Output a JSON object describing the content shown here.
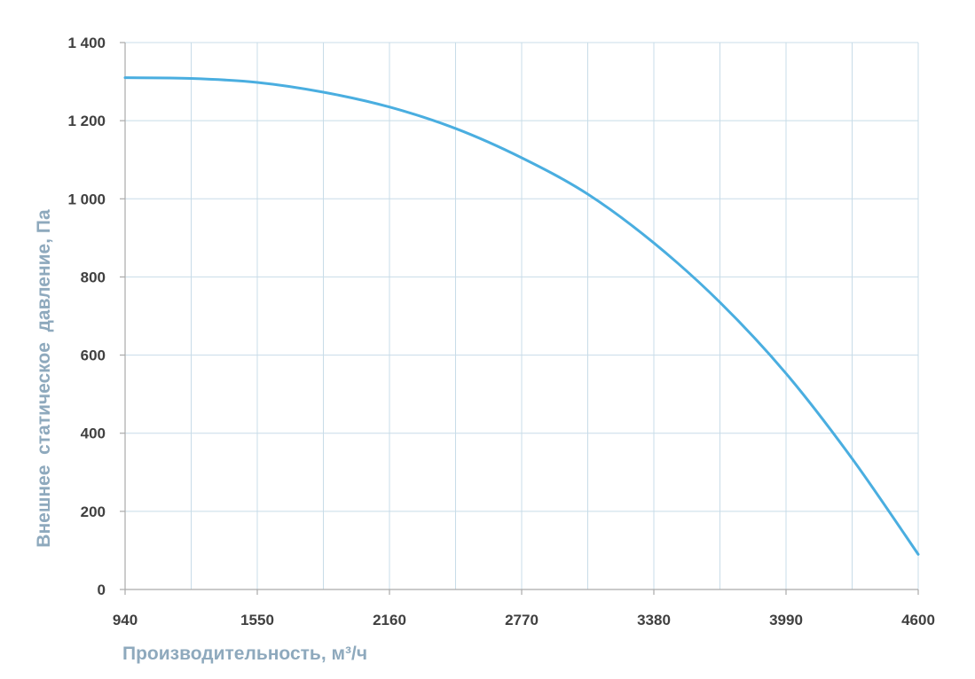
{
  "chart_data": {
    "type": "line",
    "title": "",
    "xlabel": "Производительность, м³/ч",
    "ylabel": "Внешнее  статическое  давление, Па",
    "xlim": [
      940,
      4600
    ],
    "ylim": [
      0,
      1400
    ],
    "x_tick_values": [
      940,
      1550,
      2160,
      2770,
      3380,
      3990,
      4600
    ],
    "x_tick_labels": [
      "940",
      "1550",
      "2160",
      "2770",
      "3380",
      "3990",
      "4600"
    ],
    "y_tick_values": [
      0,
      200,
      400,
      600,
      800,
      1000,
      1200,
      1400
    ],
    "y_tick_labels": [
      "0",
      "200",
      "400",
      "600",
      "800",
      "1 000",
      "1 200",
      "1 400"
    ],
    "grid": true,
    "legend": "none",
    "series": [
      {
        "color": "#4aaee0",
        "x": [
          940,
          1245,
          1550,
          1855,
          2160,
          2465,
          2770,
          3075,
          3380,
          3685,
          3990,
          4295,
          4600
        ],
        "y": [
          1310,
          1308,
          1298,
          1273,
          1235,
          1180,
          1105,
          1012,
          887,
          735,
          553,
          335,
          90
        ]
      }
    ]
  },
  "colors": {
    "grid": "#c8dce8",
    "axis": "#aaaaaa",
    "tick_label": "#404040",
    "axis_title": "#8ea9bd"
  }
}
